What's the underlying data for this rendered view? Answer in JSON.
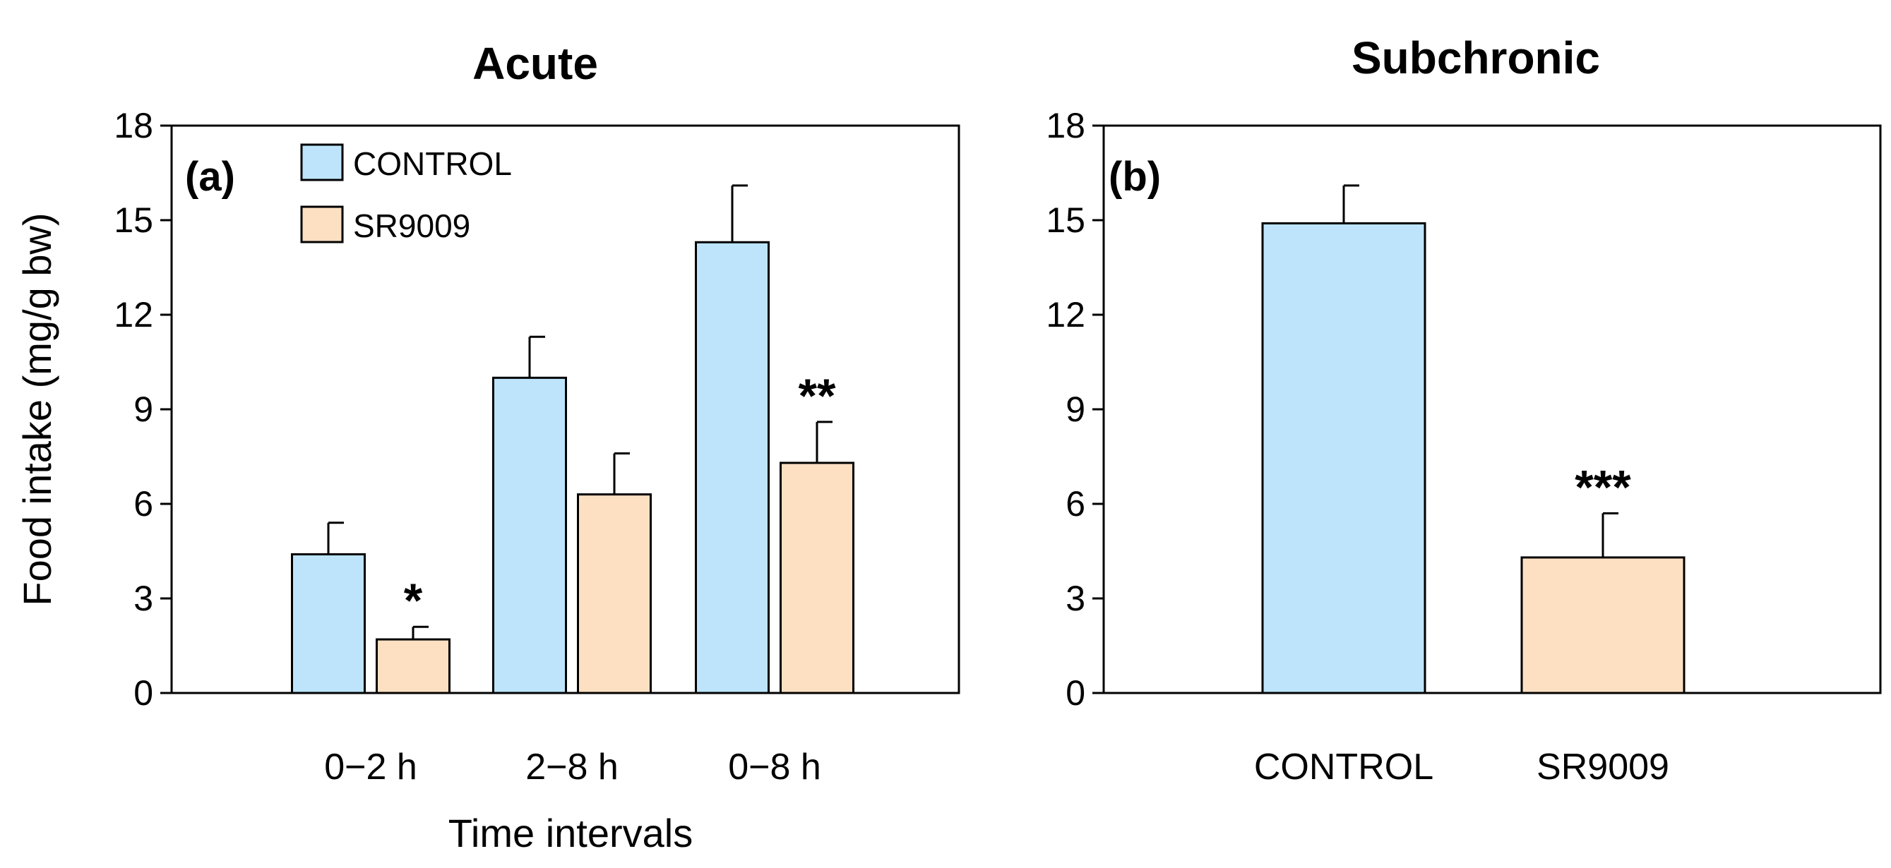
{
  "colors": {
    "control": "#bde4fb",
    "sr9009": "#fde0c2",
    "stroke": "#000000"
  },
  "y_axis_label": "Food intake (mg/g bw)",
  "chart_data": [
    {
      "type": "bar",
      "title": "Acute",
      "panel_label": "(a)",
      "xlabel": "Time intervals",
      "ylabel": "Food intake (mg/g bw)",
      "ylim": [
        0,
        18
      ],
      "yticks": [
        "0",
        "3",
        "6",
        "9",
        "12",
        "15",
        "18"
      ],
      "categories": [
        "0−2 h",
        "2−8 h",
        "0−8 h"
      ],
      "legend": {
        "position": "top-left",
        "entries": [
          "CONTROL",
          "SR9009"
        ]
      },
      "series": [
        {
          "name": "CONTROL",
          "values": [
            4.4,
            10.0,
            14.3
          ],
          "errors": [
            1.0,
            1.3,
            1.8
          ],
          "significance": [
            "",
            "",
            ""
          ]
        },
        {
          "name": "SR9009",
          "values": [
            1.7,
            6.3,
            7.3
          ],
          "errors": [
            0.4,
            1.3,
            1.3
          ],
          "significance": [
            "*",
            "",
            "**"
          ]
        }
      ]
    },
    {
      "type": "bar",
      "title": "Subchronic",
      "panel_label": "(b)",
      "xlabel": "",
      "ylabel": "",
      "ylim": [
        0,
        18
      ],
      "yticks": [
        "0",
        "3",
        "6",
        "9",
        "12",
        "15",
        "18"
      ],
      "categories": [
        "CONTROL",
        "SR9009"
      ],
      "series": [
        {
          "name": "Food intake",
          "values": [
            14.9,
            4.3
          ],
          "errors": [
            1.2,
            1.4
          ],
          "significance": [
            "",
            "***"
          ]
        }
      ]
    }
  ]
}
